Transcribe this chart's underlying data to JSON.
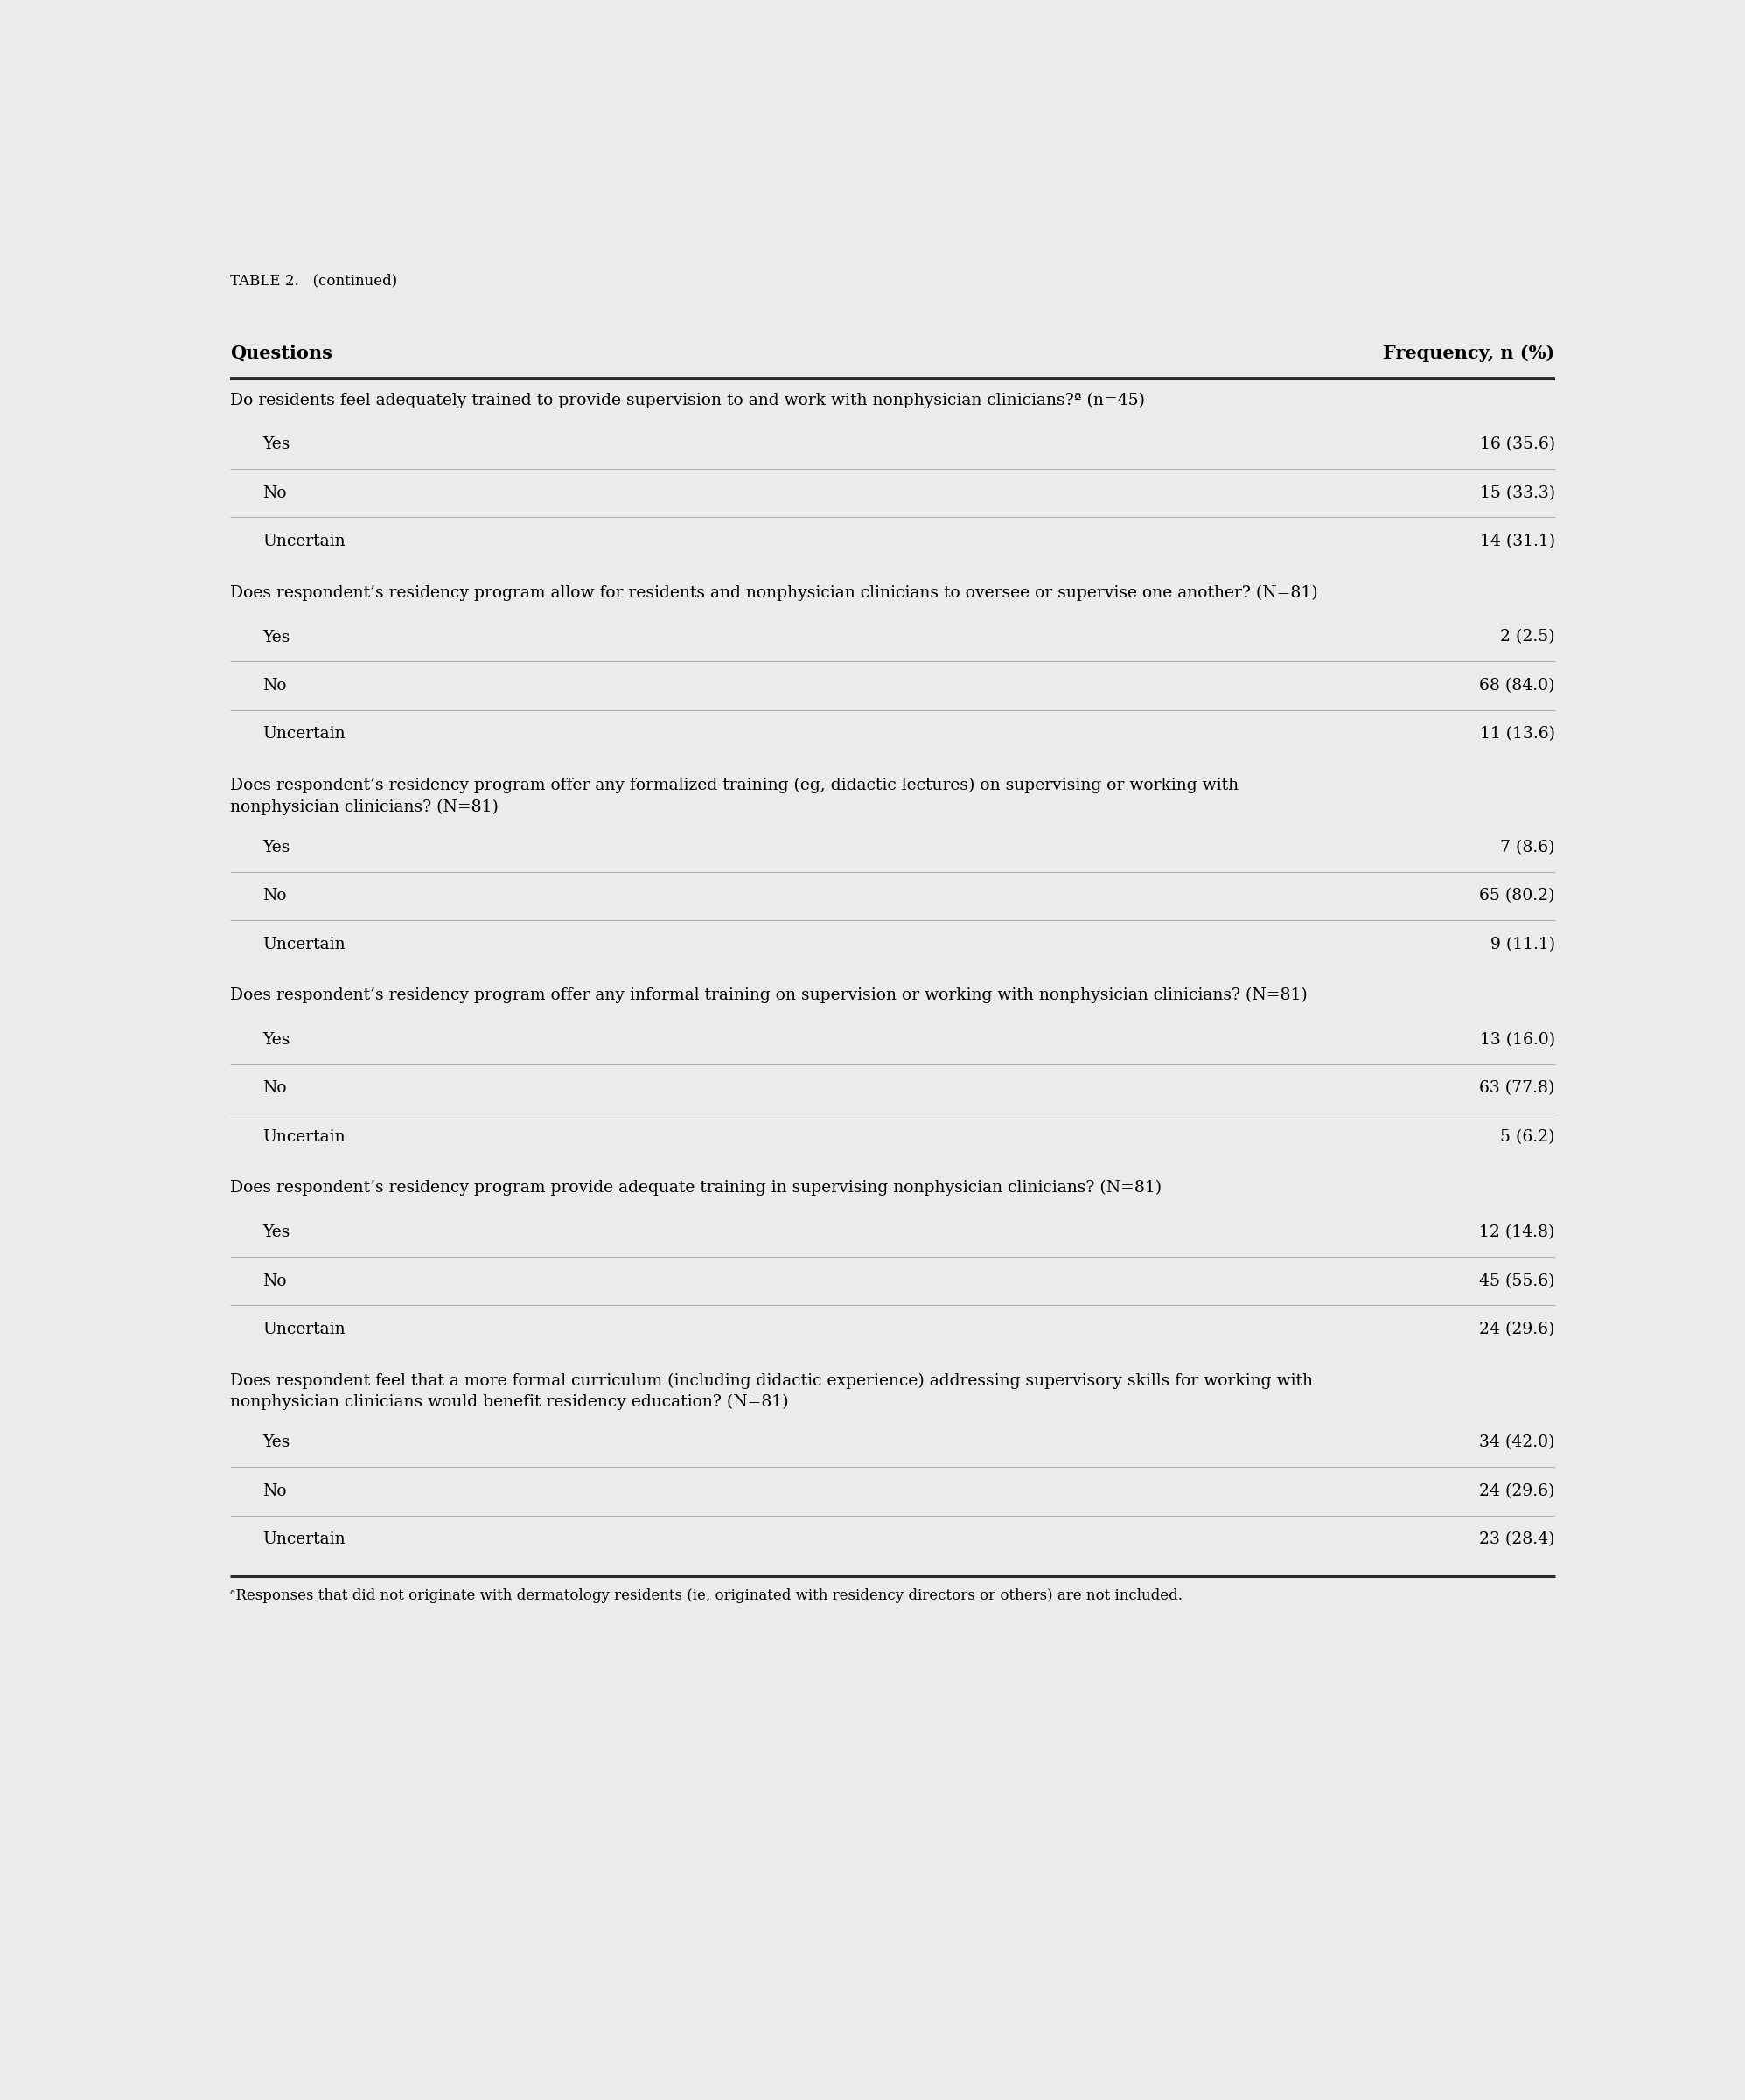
{
  "table_label": "TABLE 2.   (continued)",
  "header_left": "Questions",
  "header_right": "Frequency, n (%)",
  "background_color": "#ebebeb",
  "header_line_color": "#2b2b2b",
  "separator_line_color": "#b0b0b0",
  "questions": [
    {
      "question": "Do residents feel adequately trained to provide supervision to and work with nonphysician clinicians?ª (n=45)",
      "rows": [
        {
          "label": "Yes",
          "value": "16 (35.6)"
        },
        {
          "label": "No",
          "value": "15 (33.3)"
        },
        {
          "label": "Uncertain",
          "value": "14 (31.1)"
        }
      ]
    },
    {
      "question": "Does respondent’s residency program allow for residents and nonphysician clinicians to oversee or supervise one another? (N=81)",
      "rows": [
        {
          "label": "Yes",
          "value": "2 (2.5)"
        },
        {
          "label": "No",
          "value": "68 (84.0)"
        },
        {
          "label": "Uncertain",
          "value": "11 (13.6)"
        }
      ]
    },
    {
      "question": "Does respondent’s residency program offer any formalized training (eg, didactic lectures) on supervising or working with\nnonphysician clinicians? (N=81)",
      "rows": [
        {
          "label": "Yes",
          "value": "7 (8.6)"
        },
        {
          "label": "No",
          "value": "65 (80.2)"
        },
        {
          "label": "Uncertain",
          "value": "9 (11.1)"
        }
      ]
    },
    {
      "question": "Does respondent’s residency program offer any informal training on supervision or working with nonphysician clinicians? (N=81)",
      "rows": [
        {
          "label": "Yes",
          "value": "13 (16.0)"
        },
        {
          "label": "No",
          "value": "63 (77.8)"
        },
        {
          "label": "Uncertain",
          "value": "5 (6.2)"
        }
      ]
    },
    {
      "question": "Does respondent’s residency program provide adequate training in supervising nonphysician clinicians? (N=81)",
      "rows": [
        {
          "label": "Yes",
          "value": "12 (14.8)"
        },
        {
          "label": "No",
          "value": "45 (55.6)"
        },
        {
          "label": "Uncertain",
          "value": "24 (29.6)"
        }
      ]
    },
    {
      "question": "Does respondent feel that a more formal curriculum (including didactic experience) addressing supervisory skills for working with\nnonphysician clinicians would benefit residency education? (N=81)",
      "rows": [
        {
          "label": "Yes",
          "value": "34 (42.0)"
        },
        {
          "label": "No",
          "value": "24 (29.6)"
        },
        {
          "label": "Uncertain",
          "value": "23 (28.4)"
        }
      ]
    }
  ],
  "footnote": "ᵃResponses that did not originate with dermatology residents (ie, originated with residency directors or others) are not included.",
  "label_fontsize": 13.5,
  "header_fontsize": 15,
  "question_fontsize": 13.5,
  "row_fontsize": 13.5,
  "footnote_fontsize": 12,
  "table_label_fontsize": 12
}
